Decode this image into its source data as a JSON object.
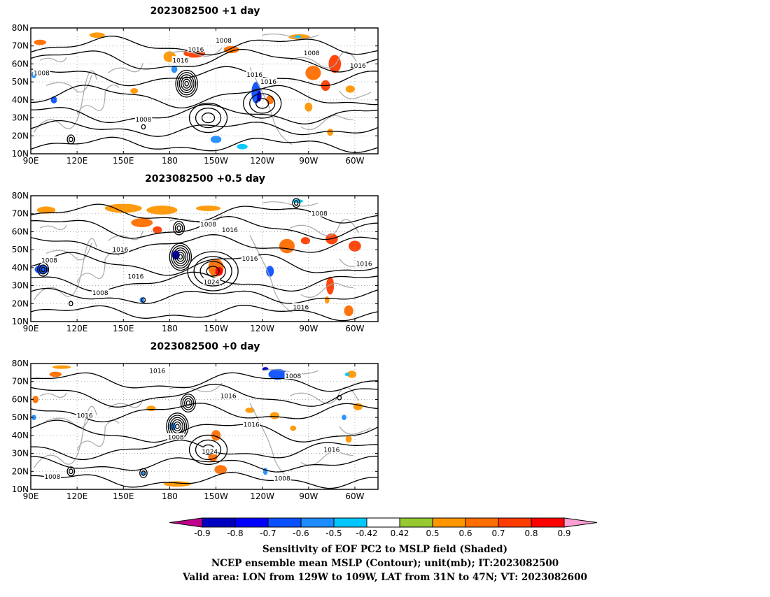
{
  "panels": [
    {
      "title": "2023082500  +1 day",
      "contour_labels": [
        {
          "text": "1016",
          "lon": 197,
          "lat": 68
        },
        {
          "text": "1008",
          "lon": 215,
          "lat": 73
        },
        {
          "text": "1016",
          "lon": 187,
          "lat": 62
        },
        {
          "text": "1008",
          "lon": 97,
          "lat": 55
        },
        {
          "text": "1016",
          "lon": 235,
          "lat": 54
        },
        {
          "text": "1016",
          "lon": 244,
          "lat": 50
        },
        {
          "text": "1008",
          "lon": 272,
          "lat": 66
        },
        {
          "text": "1016",
          "lon": 302,
          "lat": 59
        },
        {
          "text": "1008",
          "lon": 163,
          "lat": 29
        }
      ],
      "lows": [
        {
          "lon": 191,
          "lat": 49,
          "rings": 6
        },
        {
          "lon": 116,
          "lat": 18,
          "rings": 2
        },
        {
          "lon": 163,
          "lat": 25,
          "rings": 1
        }
      ],
      "highs": [
        {
          "lon": 240,
          "lat": 38,
          "rings": 3
        },
        {
          "lon": 205,
          "lat": 30,
          "rings": 3
        }
      ],
      "patches": [
        {
          "lon": 196,
          "lat": 66,
          "w": 14,
          "h": 5,
          "value": 0.7
        },
        {
          "lon": 220,
          "lat": 68,
          "w": 10,
          "h": 4,
          "value": 0.6
        },
        {
          "lon": 180,
          "lat": 64,
          "w": 8,
          "h": 6,
          "value": 0.5
        },
        {
          "lon": 133,
          "lat": 76,
          "w": 10,
          "h": 3,
          "value": 0.5
        },
        {
          "lon": 96,
          "lat": 72,
          "w": 8,
          "h": 3,
          "value": 0.6
        },
        {
          "lon": 264,
          "lat": 75,
          "w": 14,
          "h": 3,
          "value": 0.5
        },
        {
          "lon": 273,
          "lat": 55,
          "w": 10,
          "h": 8,
          "value": 0.6
        },
        {
          "lon": 281,
          "lat": 48,
          "w": 6,
          "h": 6,
          "value": 0.7
        },
        {
          "lon": 287,
          "lat": 60,
          "w": 8,
          "h": 10,
          "value": 0.7
        },
        {
          "lon": 297,
          "lat": 46,
          "w": 6,
          "h": 4,
          "value": 0.5
        },
        {
          "lon": 270,
          "lat": 36,
          "w": 5,
          "h": 5,
          "value": 0.5
        },
        {
          "lon": 284,
          "lat": 22,
          "w": 4,
          "h": 4,
          "value": 0.5
        },
        {
          "lon": 157,
          "lat": 45,
          "w": 5,
          "h": 3,
          "value": 0.5
        },
        {
          "lon": 245,
          "lat": 40,
          "w": 5,
          "h": 5,
          "value": 0.6
        },
        {
          "lon": 236,
          "lat": 44,
          "w": 6,
          "h": 12,
          "value": -0.7
        },
        {
          "lon": 238,
          "lat": 42,
          "w": 3,
          "h": 6,
          "value": -0.9
        },
        {
          "lon": 214,
          "lat": 16,
          "w": 18,
          "h": 7,
          "value": -0.42
        },
        {
          "lon": 210,
          "lat": 18,
          "w": 7,
          "h": 4,
          "value": -0.6
        },
        {
          "lon": 227,
          "lat": 14,
          "w": 7,
          "h": 3,
          "value": -0.5
        },
        {
          "lon": 183,
          "lat": 57,
          "w": 4,
          "h": 4,
          "value": -0.6
        },
        {
          "lon": 263,
          "lat": 75,
          "w": 4,
          "h": 2,
          "value": -0.5
        },
        {
          "lon": 92,
          "lat": 54,
          "w": 3,
          "h": 4,
          "value": -0.6
        },
        {
          "lon": 105,
          "lat": 40,
          "w": 4,
          "h": 4,
          "value": -0.7
        }
      ]
    },
    {
      "title": "2023082500  +0.5 day",
      "contour_labels": [
        {
          "text": "1008",
          "lon": 277,
          "lat": 70
        },
        {
          "text": "1008",
          "lon": 205,
          "lat": 64
        },
        {
          "text": "1016",
          "lon": 219,
          "lat": 61
        },
        {
          "text": "1016",
          "lon": 148,
          "lat": 50
        },
        {
          "text": "1016",
          "lon": 232,
          "lat": 45
        },
        {
          "text": "1024",
          "lon": 207,
          "lat": 32
        },
        {
          "text": "1016",
          "lon": 306,
          "lat": 42
        },
        {
          "text": "1008",
          "lon": 102,
          "lat": 44
        },
        {
          "text": "1016",
          "lon": 158,
          "lat": 35
        },
        {
          "text": "1008",
          "lon": 135,
          "lat": 26
        },
        {
          "text": "1016",
          "lon": 265,
          "lat": 18
        }
      ],
      "lows": [
        {
          "lon": 187,
          "lat": 46,
          "rings": 6
        },
        {
          "lon": 186,
          "lat": 62,
          "rings": 3
        },
        {
          "lon": 262,
          "lat": 76,
          "rings": 2
        },
        {
          "lon": 98,
          "lat": 39,
          "rings": 3
        },
        {
          "lon": 116,
          "lat": 20,
          "rings": 1
        },
        {
          "lon": 163,
          "lat": 22,
          "rings": 1
        }
      ],
      "highs": [
        {
          "lon": 208,
          "lat": 38,
          "rings": 4
        }
      ],
      "patches": [
        {
          "lon": 150,
          "lat": 73,
          "w": 24,
          "h": 5,
          "value": 0.5
        },
        {
          "lon": 175,
          "lat": 72,
          "w": 20,
          "h": 5,
          "value": 0.5
        },
        {
          "lon": 162,
          "lat": 65,
          "w": 14,
          "h": 5,
          "value": 0.6
        },
        {
          "lon": 172,
          "lat": 61,
          "w": 6,
          "h": 4,
          "value": 0.7
        },
        {
          "lon": 205,
          "lat": 73,
          "w": 16,
          "h": 3,
          "value": 0.5
        },
        {
          "lon": 100,
          "lat": 72,
          "w": 12,
          "h": 4,
          "value": 0.5
        },
        {
          "lon": 210,
          "lat": 40,
          "w": 10,
          "h": 10,
          "value": 0.6
        },
        {
          "lon": 212,
          "lat": 38,
          "w": 5,
          "h": 5,
          "value": 0.8
        },
        {
          "lon": 256,
          "lat": 52,
          "w": 10,
          "h": 8,
          "value": 0.6
        },
        {
          "lon": 268,
          "lat": 55,
          "w": 6,
          "h": 4,
          "value": 0.7
        },
        {
          "lon": 285,
          "lat": 56,
          "w": 8,
          "h": 6,
          "value": 0.7
        },
        {
          "lon": 300,
          "lat": 52,
          "w": 8,
          "h": 6,
          "value": 0.7
        },
        {
          "lon": 284,
          "lat": 30,
          "w": 5,
          "h": 10,
          "value": 0.7
        },
        {
          "lon": 296,
          "lat": 16,
          "w": 6,
          "h": 6,
          "value": 0.6
        },
        {
          "lon": 282,
          "lat": 22,
          "w": 3,
          "h": 4,
          "value": 0.5
        },
        {
          "lon": 184,
          "lat": 47,
          "w": 5,
          "h": 5,
          "value": -0.8
        },
        {
          "lon": 97,
          "lat": 39,
          "w": 9,
          "h": 5,
          "value": -0.7
        },
        {
          "lon": 245,
          "lat": 38,
          "w": 5,
          "h": 6,
          "value": -0.7
        },
        {
          "lon": 263,
          "lat": 77,
          "w": 7,
          "h": 2,
          "value": -0.5
        },
        {
          "lon": 162,
          "lat": 22,
          "w": 3,
          "h": 3,
          "value": -0.6
        }
      ]
    },
    {
      "title": "2023082500  +0 day",
      "contour_labels": [
        {
          "text": "1016",
          "lon": 172,
          "lat": 76
        },
        {
          "text": "1008",
          "lon": 260,
          "lat": 73
        },
        {
          "text": "1016",
          "lon": 218,
          "lat": 62
        },
        {
          "text": "1016",
          "lon": 125,
          "lat": 51
        },
        {
          "text": "1008",
          "lon": 184,
          "lat": 39
        },
        {
          "text": "1016",
          "lon": 233,
          "lat": 46
        },
        {
          "text": "1024",
          "lon": 206,
          "lat": 31
        },
        {
          "text": "1016",
          "lon": 285,
          "lat": 32
        },
        {
          "text": "1008",
          "lon": 104,
          "lat": 17
        },
        {
          "text": "1008",
          "lon": 253,
          "lat": 16
        }
      ],
      "lows": [
        {
          "lon": 185,
          "lat": 45,
          "rings": 6
        },
        {
          "lon": 192,
          "lat": 58,
          "rings": 4
        },
        {
          "lon": 116,
          "lat": 20,
          "rings": 2
        },
        {
          "lon": 163,
          "lat": 19,
          "rings": 2
        },
        {
          "lon": 290,
          "lat": 61,
          "rings": 1
        }
      ],
      "highs": [
        {
          "lon": 205,
          "lat": 32,
          "rings": 3
        }
      ],
      "patches": [
        {
          "lon": 110,
          "lat": 78,
          "w": 12,
          "h": 2,
          "value": 0.5
        },
        {
          "lon": 106,
          "lat": 74,
          "w": 8,
          "h": 3,
          "value": 0.6
        },
        {
          "lon": 93,
          "lat": 60,
          "w": 4,
          "h": 4,
          "value": 0.6
        },
        {
          "lon": 210,
          "lat": 40,
          "w": 6,
          "h": 6,
          "value": 0.6
        },
        {
          "lon": 208,
          "lat": 28,
          "w": 6,
          "h": 5,
          "value": 0.6
        },
        {
          "lon": 213,
          "lat": 21,
          "w": 8,
          "h": 5,
          "value": 0.6
        },
        {
          "lon": 185,
          "lat": 13,
          "w": 18,
          "h": 3,
          "value": 0.5
        },
        {
          "lon": 168,
          "lat": 55,
          "w": 6,
          "h": 3,
          "value": 0.5
        },
        {
          "lon": 232,
          "lat": 54,
          "w": 6,
          "h": 3,
          "value": 0.5
        },
        {
          "lon": 248,
          "lat": 51,
          "w": 6,
          "h": 4,
          "value": 0.5
        },
        {
          "lon": 298,
          "lat": 74,
          "w": 6,
          "h": 4,
          "value": 0.5
        },
        {
          "lon": 302,
          "lat": 56,
          "w": 6,
          "h": 4,
          "value": 0.5
        },
        {
          "lon": 296,
          "lat": 38,
          "w": 4,
          "h": 4,
          "value": 0.5
        },
        {
          "lon": 260,
          "lat": 44,
          "w": 4,
          "h": 3,
          "value": 0.5
        },
        {
          "lon": 250,
          "lat": 74,
          "w": 12,
          "h": 6,
          "value": -0.7
        },
        {
          "lon": 242,
          "lat": 77,
          "w": 4,
          "h": 2,
          "value": -0.9
        },
        {
          "lon": 182,
          "lat": 45,
          "w": 4,
          "h": 4,
          "value": -0.6
        },
        {
          "lon": 242,
          "lat": 20,
          "w": 3,
          "h": 4,
          "value": -0.6
        },
        {
          "lon": 163,
          "lat": 19,
          "w": 3,
          "h": 3,
          "value": -0.6
        },
        {
          "lon": 92,
          "lat": 50,
          "w": 3,
          "h": 3,
          "value": -0.6
        },
        {
          "lon": 293,
          "lat": 50,
          "w": 3,
          "h": 3,
          "value": -0.6
        },
        {
          "lon": 295,
          "lat": 74,
          "w": 3,
          "h": 2,
          "value": -0.5
        }
      ]
    }
  ],
  "map": {
    "lon_range": [
      90,
      315
    ],
    "lat_range": [
      10,
      80
    ],
    "lat_ticks": [
      "80N",
      "70N",
      "60N",
      "50N",
      "40N",
      "30N",
      "20N",
      "10N"
    ],
    "lat_tick_values": [
      80,
      70,
      60,
      50,
      40,
      30,
      20,
      10
    ],
    "lon_ticks": [
      "90E",
      "120E",
      "150E",
      "180",
      "150W",
      "120W",
      "90W",
      "60W"
    ],
    "lon_tick_values": [
      90,
      120,
      150,
      180,
      210,
      240,
      270,
      300
    ],
    "contour_color": "#000000",
    "coast_color": "#a8a8a8",
    "grid_color": "#a0a0a0"
  },
  "colorbar": {
    "boundaries": [
      "-0.9",
      "-0.8",
      "-0.7",
      "-0.6",
      "-0.5",
      "-0.42",
      "0.42",
      "0.5",
      "0.6",
      "0.7",
      "0.8",
      "0.9"
    ],
    "boundary_values": [
      -0.9,
      -0.8,
      -0.7,
      -0.6,
      -0.5,
      -0.42,
      0.42,
      0.5,
      0.6,
      0.7,
      0.8,
      0.9
    ],
    "colors": [
      "#c0008c",
      "#0000c0",
      "#0000ff",
      "#0a50ff",
      "#1e8cff",
      "#00c8ff",
      "#ffffff",
      "#96c832",
      "#ff9600",
      "#ff6e00",
      "#ff3c00",
      "#ff0000",
      "#ffa0d2"
    ]
  },
  "footer": {
    "line1": "Sensitivity of EOF PC2 to MSLP field (Shaded)",
    "line2": "NCEP ensemble mean MSLP (Contour); unit(mb); IT:2023082500",
    "line3": "Valid area: LON from 129W to 109W, LAT from 31N to 47N; VT: 2023082600"
  }
}
